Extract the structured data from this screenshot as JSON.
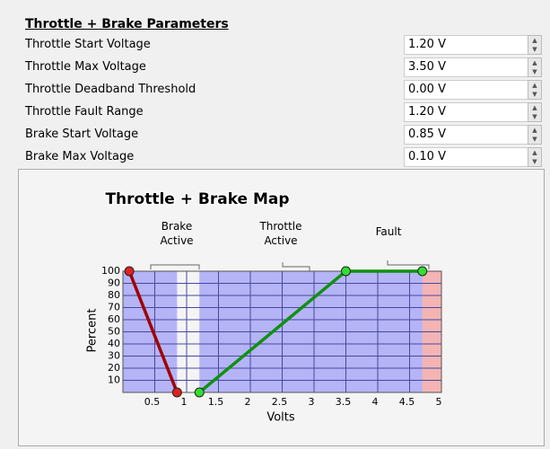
{
  "header": {
    "title": "Throttle + Brake Parameters"
  },
  "params": [
    {
      "label": "Throttle Start Voltage",
      "value": "1.20 V"
    },
    {
      "label": "Throttle Max Voltage",
      "value": "3.50 V"
    },
    {
      "label": "Throttle Deadband Threshold",
      "value": "0.00 V"
    },
    {
      "label": "Throttle Fault Range",
      "value": "1.20 V"
    },
    {
      "label": "Brake Start Voltage",
      "value": "0.85 V"
    },
    {
      "label": "Brake Max Voltage",
      "value": "0.10 V"
    }
  ],
  "chart_data": {
    "type": "line",
    "title": "Throttle + Brake Map",
    "annotations": [
      "Brake Active",
      "Throttle Active",
      "Fault"
    ],
    "ylabel": "Percent",
    "xlabel": "Volts",
    "xlim": [
      0,
      5
    ],
    "ylim": [
      0,
      100
    ],
    "xticks": [
      0.5,
      1,
      1.5,
      2,
      2.5,
      3,
      3.5,
      4,
      4.5,
      5
    ],
    "yticks": [
      10,
      20,
      30,
      40,
      50,
      60,
      70,
      80,
      90,
      100
    ],
    "grid": true,
    "series": [
      {
        "color": "#a00000",
        "x": [
          0.1,
          0.85
        ],
        "values": [
          100,
          0
        ]
      },
      {
        "color": "#109010",
        "x": [
          1.2,
          3.5,
          4.7
        ],
        "values": [
          0,
          100,
          100
        ]
      }
    ]
  }
}
